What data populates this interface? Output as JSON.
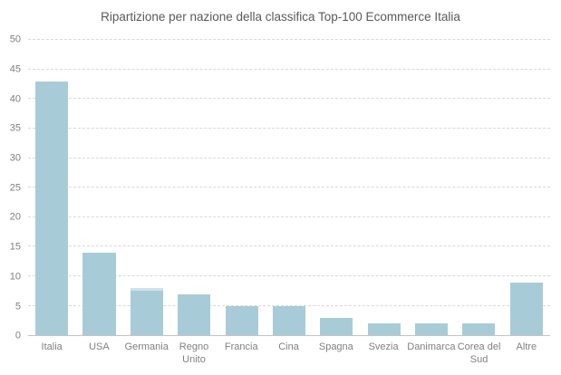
{
  "page": {
    "background": "#ffffff"
  },
  "chart_data": {
    "type": "bar",
    "title": "Ripartizione per nazione della classifica Top-100 Ecommerce Italia",
    "categories": [
      "Italia",
      "USA",
      "Germania",
      "Regno Unito",
      "Francia",
      "Cina",
      "Spagna",
      "Svezia",
      "Danimarca",
      "Corea del Sud",
      "Altre"
    ],
    "values": [
      43,
      14,
      8,
      7,
      5,
      5,
      3,
      2,
      2,
      2,
      9
    ],
    "xlabel": "",
    "ylabel": "",
    "ylim": [
      0,
      50
    ],
    "yticks": [
      0,
      5,
      10,
      15,
      20,
      25,
      30,
      35,
      40,
      45,
      50
    ],
    "grid": "horizontal-dashed",
    "legend_position": "none",
    "bar_color": "#a8ccd7",
    "bar_tip_highlight": {
      "category": "Germania",
      "color": "#cde2e8"
    },
    "gridline_color": "#d9d9d9",
    "axis_line_color": "#c4c4c4",
    "title_color": "#595959",
    "tick_label_color": "#808080"
  }
}
